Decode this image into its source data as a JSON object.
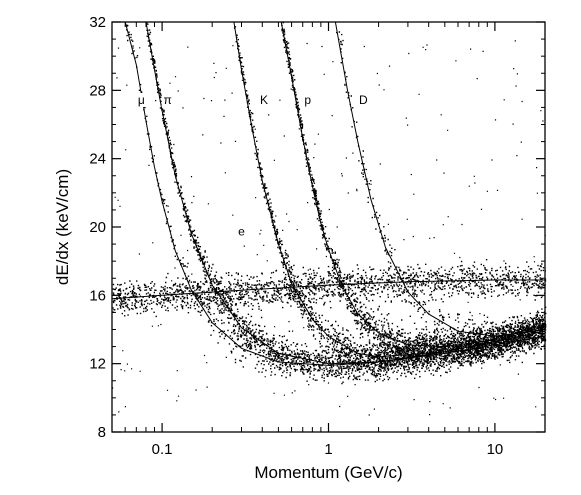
{
  "chart_data": {
    "type": "scatter",
    "title": "",
    "xlabel": "Momentum (GeV/c)",
    "ylabel": "dE/dx (keV/cm)",
    "xscale": "log",
    "xlim": [
      0.05,
      20
    ],
    "ylim": [
      8,
      32
    ],
    "x_ticks": [
      {
        "value": 0.1,
        "label": "0.1"
      },
      {
        "value": 1,
        "label": "1"
      },
      {
        "value": 10,
        "label": "10"
      }
    ],
    "y_ticks": [
      {
        "value": 8,
        "label": "8"
      },
      {
        "value": 12,
        "label": "12"
      },
      {
        "value": 16,
        "label": "16"
      },
      {
        "value": 20,
        "label": "20"
      },
      {
        "value": 24,
        "label": "24"
      },
      {
        "value": 28,
        "label": "28"
      },
      {
        "value": 32,
        "label": "32"
      }
    ],
    "grid": false,
    "legend": "none",
    "band_labels": [
      {
        "text": "μ",
        "x": 0.075,
        "y": 27.2
      },
      {
        "text": "π",
        "x": 0.108,
        "y": 27.2
      },
      {
        "text": "K",
        "x": 0.41,
        "y": 27.2
      },
      {
        "text": "p",
        "x": 0.75,
        "y": 27.2
      },
      {
        "text": "D",
        "x": 1.62,
        "y": 27.2
      },
      {
        "text": "e",
        "x": 0.3,
        "y": 19.5
      }
    ],
    "bands": [
      {
        "name": "μ",
        "points": [
          [
            0.06,
            32
          ],
          [
            0.07,
            29.5
          ],
          [
            0.08,
            26.2
          ],
          [
            0.09,
            23.5
          ],
          [
            0.1,
            21.5
          ],
          [
            0.12,
            18.6
          ],
          [
            0.15,
            16.3
          ],
          [
            0.2,
            14.4
          ],
          [
            0.3,
            12.9
          ],
          [
            0.5,
            12.1
          ],
          [
            1.0,
            11.9
          ],
          [
            2.0,
            12.1
          ],
          [
            5.0,
            12.6
          ],
          [
            10.0,
            13.1
          ],
          [
            20.0,
            13.6
          ]
        ]
      },
      {
        "name": "π",
        "points": [
          [
            0.08,
            32
          ],
          [
            0.09,
            29.2
          ],
          [
            0.1,
            26.8
          ],
          [
            0.12,
            23.0
          ],
          [
            0.15,
            19.6
          ],
          [
            0.2,
            16.6
          ],
          [
            0.3,
            14.1
          ],
          [
            0.5,
            12.6
          ],
          [
            1.0,
            12.0
          ],
          [
            2.0,
            12.1
          ],
          [
            5.0,
            12.7
          ],
          [
            10.0,
            13.3
          ],
          [
            20.0,
            13.9
          ]
        ]
      },
      {
        "name": "K",
        "points": [
          [
            0.27,
            32
          ],
          [
            0.3,
            29.2
          ],
          [
            0.35,
            25.6
          ],
          [
            0.4,
            22.7
          ],
          [
            0.5,
            19.0
          ],
          [
            0.6,
            16.7
          ],
          [
            0.8,
            14.6
          ],
          [
            1.0,
            13.6
          ],
          [
            1.5,
            12.6
          ],
          [
            2.0,
            12.4
          ],
          [
            5.0,
            12.7
          ],
          [
            10.0,
            13.3
          ],
          [
            20.0,
            14.2
          ]
        ]
      },
      {
        "name": "p",
        "points": [
          [
            0.52,
            32
          ],
          [
            0.6,
            28.8
          ],
          [
            0.7,
            25.2
          ],
          [
            0.8,
            22.4
          ],
          [
            0.9,
            20.2
          ],
          [
            1.0,
            18.7
          ],
          [
            1.2,
            16.6
          ],
          [
            1.5,
            14.9
          ],
          [
            2.0,
            13.8
          ],
          [
            3.0,
            13.1
          ],
          [
            5.0,
            13.0
          ],
          [
            10.0,
            13.4
          ],
          [
            20.0,
            14.3
          ]
        ]
      },
      {
        "name": "D",
        "points": [
          [
            1.1,
            32
          ],
          [
            1.3,
            28.0
          ],
          [
            1.5,
            25.0
          ],
          [
            1.8,
            21.6
          ],
          [
            2.2,
            18.8
          ],
          [
            3.0,
            16.2
          ],
          [
            4.0,
            14.9
          ],
          [
            6.0,
            13.9
          ],
          [
            10.0,
            13.6
          ],
          [
            20.0,
            14.0
          ]
        ]
      },
      {
        "name": "e",
        "points": [
          [
            0.05,
            15.8
          ],
          [
            0.1,
            16.0
          ],
          [
            0.3,
            16.3
          ],
          [
            1.0,
            16.6
          ],
          [
            3.0,
            16.8
          ],
          [
            10.0,
            16.9
          ],
          [
            20.0,
            16.9
          ]
        ]
      }
    ]
  }
}
